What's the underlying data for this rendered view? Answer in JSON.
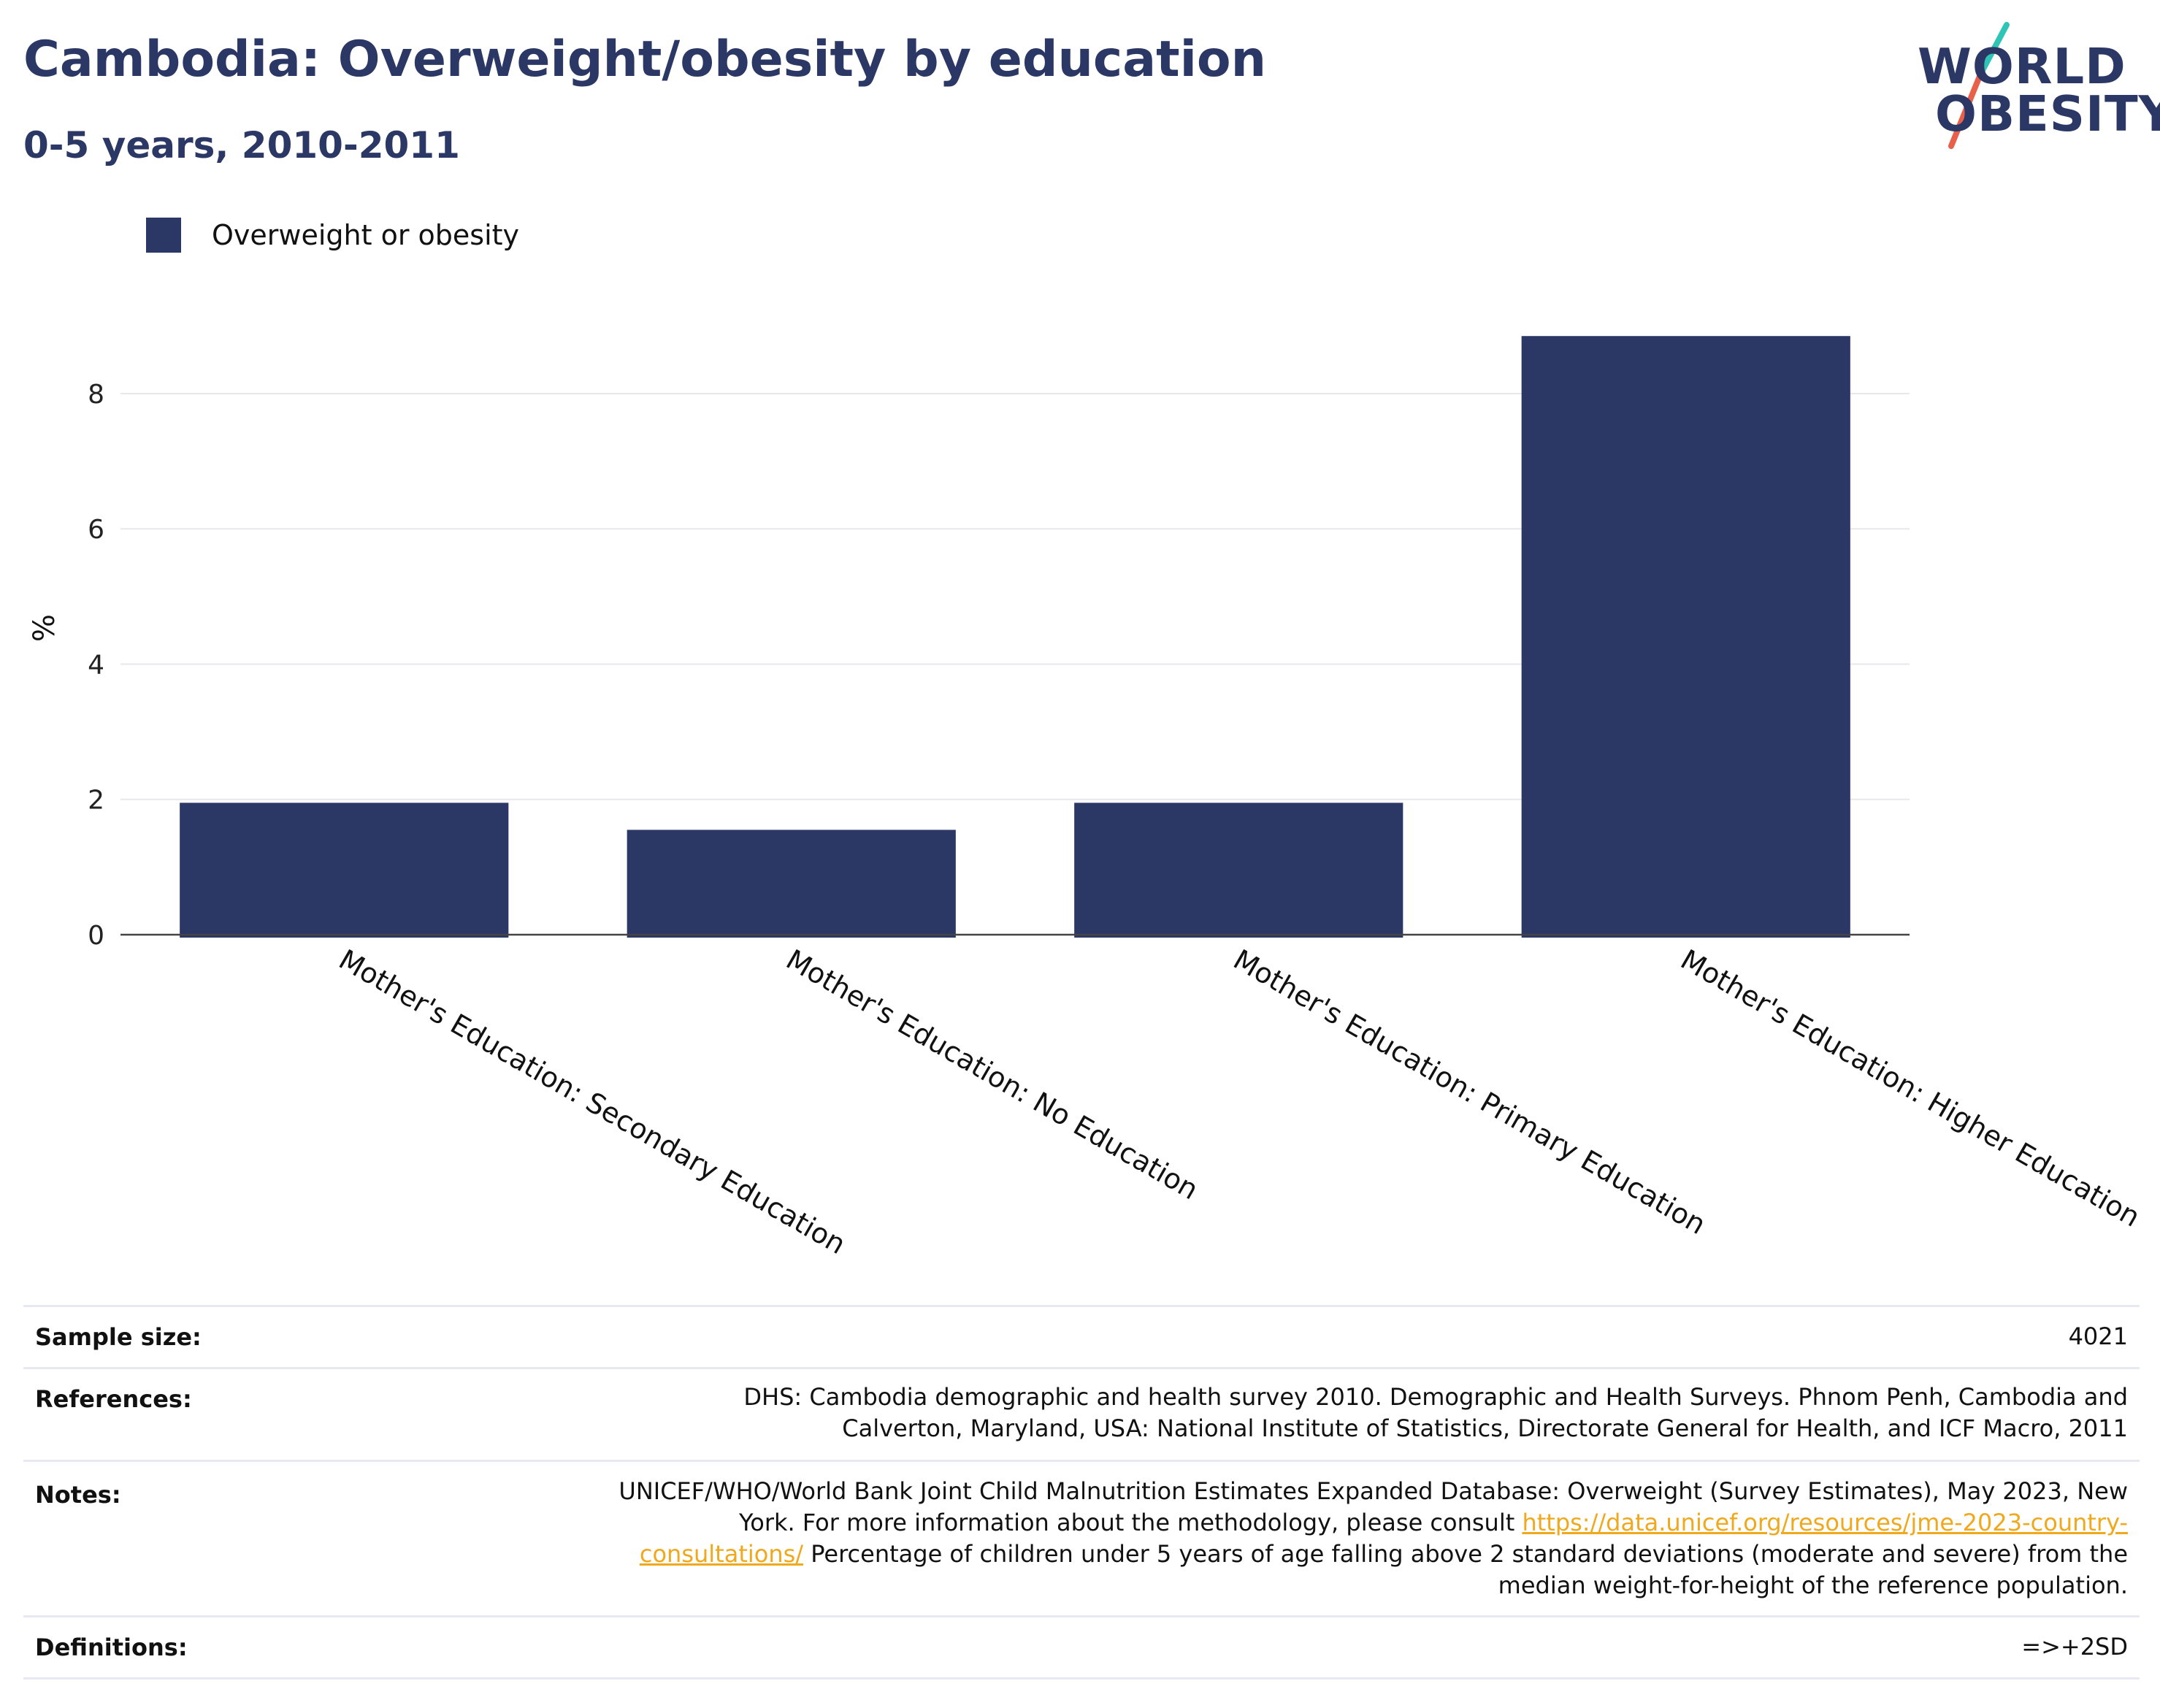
{
  "header": {
    "title": "Cambodia: Overweight/obesity by education",
    "subtitle": "0-5 years, 2010-2011"
  },
  "logo": {
    "line1": "WORLD",
    "line2": "OBESITY",
    "slash_colors": [
      "#2ec4b6",
      "#e8604c"
    ]
  },
  "colors": {
    "bar": "#2b3764",
    "title": "#2b3764",
    "link": "#f0a81c"
  },
  "chart_data": {
    "type": "bar",
    "categories": [
      "Mother's Education: Secondary Education",
      "Mother's Education: No Education",
      "Mother's Education: Primary Education",
      "Mother's Education: Higher Education"
    ],
    "series": [
      {
        "name": "Overweight or obesity",
        "values": [
          1.95,
          1.55,
          1.95,
          8.85
        ]
      }
    ],
    "title": "Cambodia: Overweight/obesity by education",
    "subtitle": "0-5 years, 2010-2011",
    "ylabel": "%",
    "xlabel": "",
    "ylim": [
      0,
      9.5
    ],
    "yticks": [
      0,
      2,
      4,
      6,
      8
    ],
    "grid": true,
    "legend": "top-left"
  },
  "info": {
    "sample_size_label": "Sample size:",
    "sample_size_value": "4021",
    "references_label": "References:",
    "references_value": "DHS: Cambodia demographic and health survey 2010. Demographic and Health Surveys. Phnom Penh, Cambodia and Calverton, Maryland, USA: National Institute of Statistics, Directorate General for Health, and ICF Macro, 2011",
    "notes_label": "Notes:",
    "notes_text_1": "UNICEF/WHO/World Bank Joint Child Malnutrition Estimates Expanded Database: Overweight (Survey Estimates), May 2023, New York. For more information about the methodology, please consult",
    "notes_link": "https://data.unicef.org/resources/jme-2023-country-consultations/",
    "notes_text_2": "Percentage of children under 5 years of age falling above 2 standard deviations (moderate and severe) from the median weight-for-height of the reference population.",
    "definitions_label": "Definitions:",
    "definitions_value": "=>+2SD"
  }
}
